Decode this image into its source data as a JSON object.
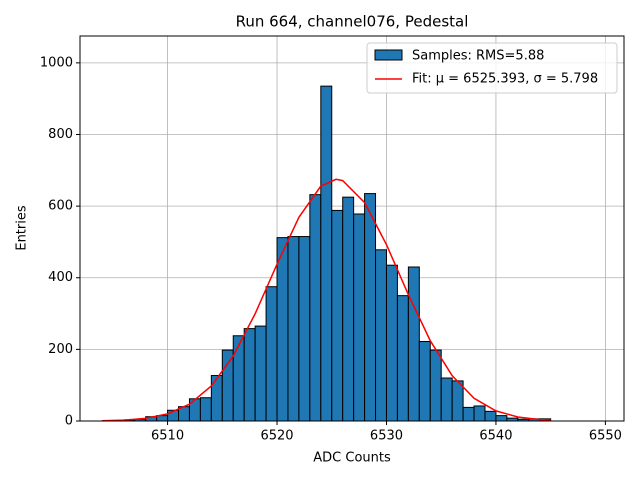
{
  "chart_data": {
    "type": "histogram",
    "title": "Run 664, channel076, Pedestal",
    "xlabel": "ADC Counts",
    "ylabel": "Entries",
    "name": "Samples: RMS=5.88",
    "color": "#1f77b4",
    "edgecolor": "#000000",
    "bins": [
      6505,
      6506,
      6507,
      6508,
      6509,
      6510,
      6511,
      6512,
      6513,
      6514,
      6515,
      6516,
      6517,
      6518,
      6519,
      6520,
      6521,
      6522,
      6523,
      6524,
      6525,
      6526,
      6527,
      6528,
      6529,
      6530,
      6531,
      6532,
      6533,
      6534,
      6535,
      6536,
      6537,
      6538,
      6539,
      6540,
      6541,
      6542,
      6543,
      6544,
      6545
    ],
    "counts": [
      1,
      3,
      5,
      12,
      15,
      30,
      40,
      62,
      65,
      127,
      198,
      238,
      258,
      265,
      375,
      512,
      515,
      515,
      632,
      935,
      588,
      625,
      578,
      635,
      478,
      435,
      350,
      430,
      222,
      198,
      120,
      112,
      38,
      42,
      27,
      15,
      8,
      5,
      6,
      6
    ],
    "overlay": {
      "type": "line",
      "name": "Fit: μ = 6525.393, σ = 5.798",
      "color": "#ff0000",
      "x": [
        6504,
        6506,
        6508,
        6510,
        6512,
        6514,
        6516,
        6518,
        6520,
        6522,
        6524,
        6525.393,
        6526,
        6528,
        6530,
        6532,
        6534,
        6536,
        6538,
        6540,
        6542,
        6544,
        6545
      ],
      "y": [
        0.7,
        2.5,
        7.5,
        19.9,
        46.8,
        97.8,
        181.7,
        299.4,
        438,
        568.8,
        655.8,
        675,
        671.3,
        610,
        492.3,
        352.6,
        224.2,
        126.6,
        63.5,
        28.2,
        11.2,
        3.9,
        2.2
      ]
    },
    "xlim": [
      6502,
      6551.7
    ],
    "ylim": [
      0,
      1075
    ],
    "xticks": [
      6510,
      6520,
      6530,
      6540,
      6550
    ],
    "yticks": [
      0,
      200,
      400,
      600,
      800,
      1000
    ],
    "grid": true,
    "legend": "upper right"
  }
}
